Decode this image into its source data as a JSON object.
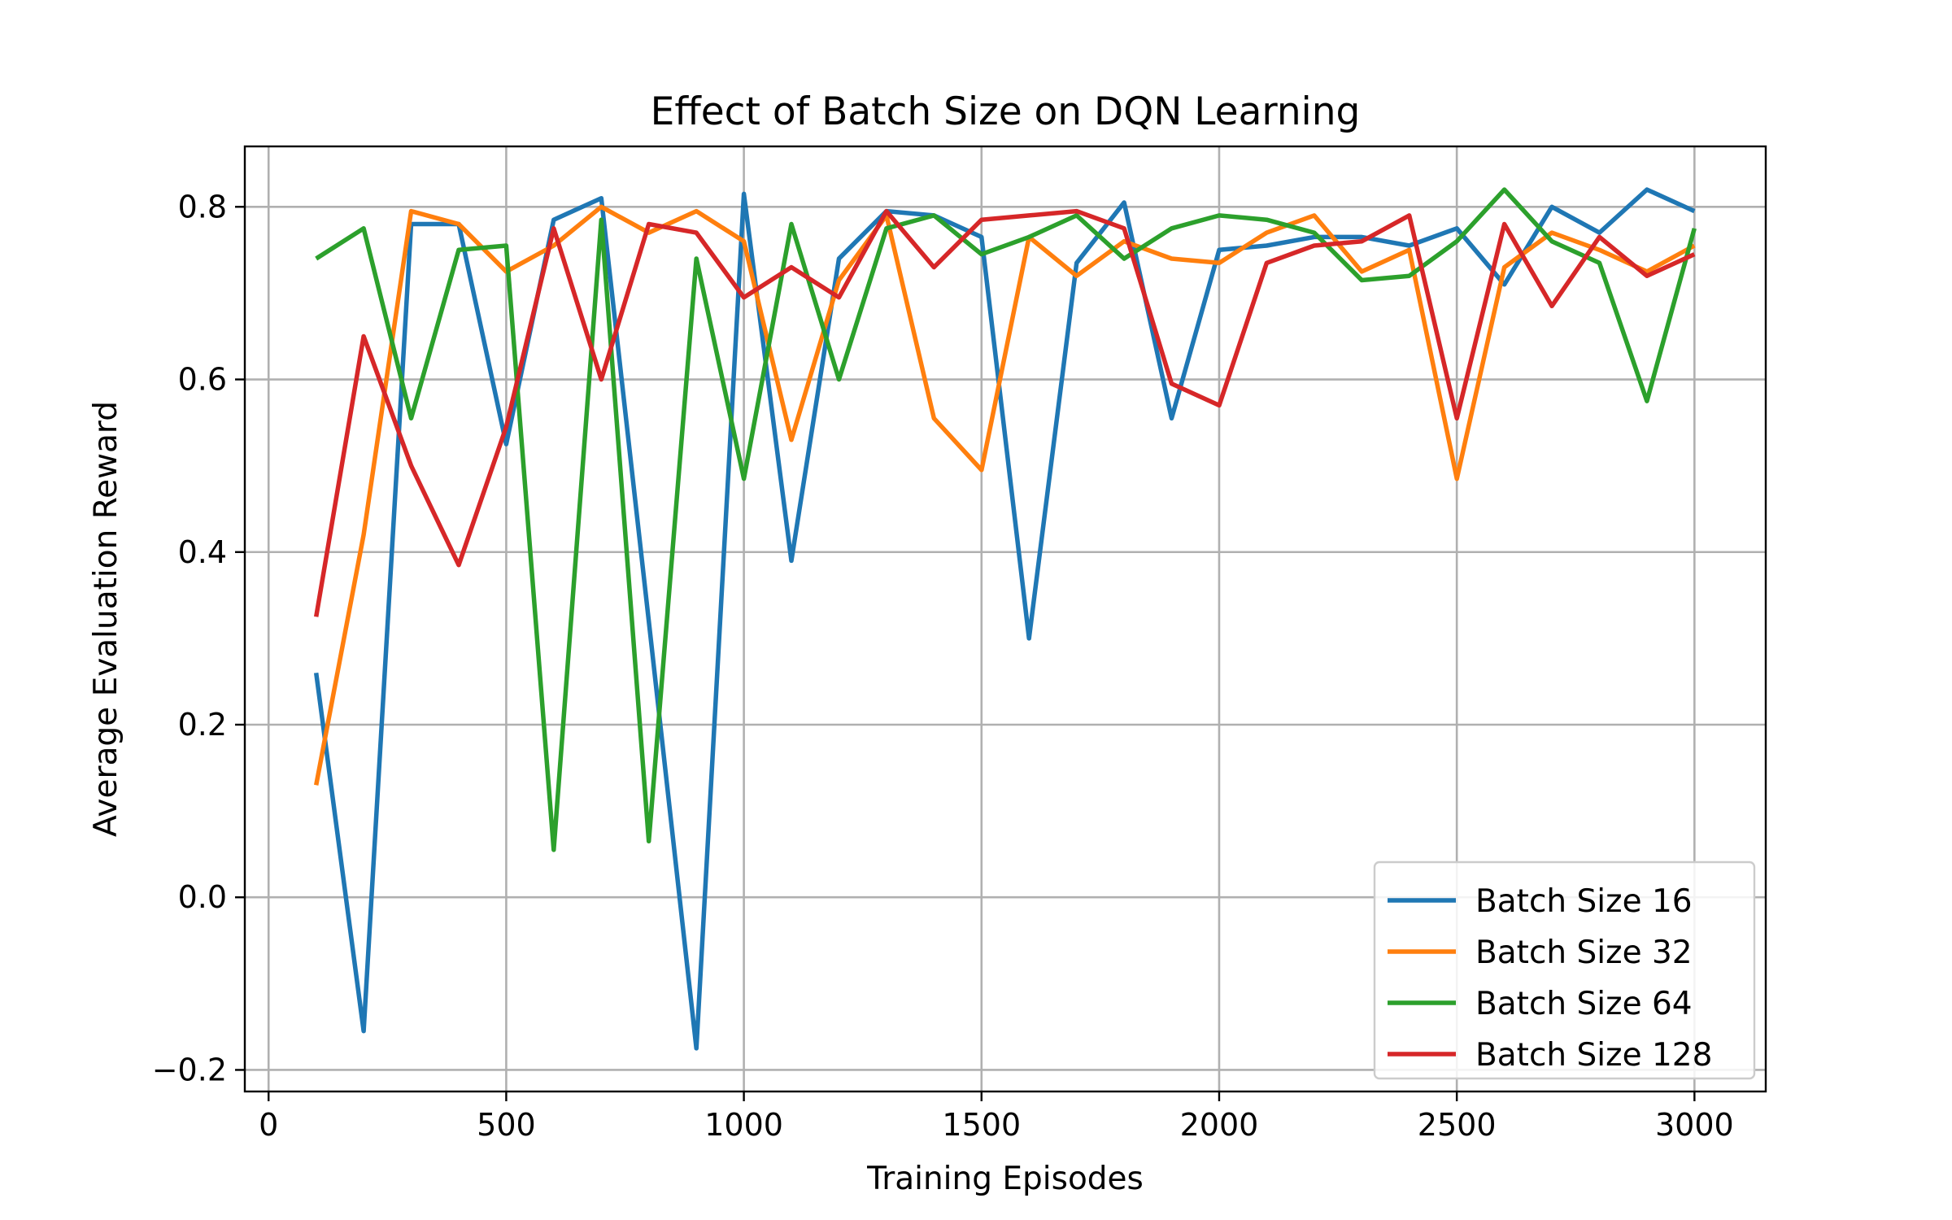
{
  "chart_data": {
    "type": "line",
    "title": "Effect of Batch Size on DQN Learning",
    "xlabel": "Training Episodes",
    "ylabel": "Average Evaluation Reward",
    "xlim": [
      -50,
      3150
    ],
    "ylim": [
      -0.225,
      0.87
    ],
    "xticks": [
      0,
      500,
      1000,
      1500,
      2000,
      2500,
      3000
    ],
    "xtick_labels": [
      "0",
      "500",
      "1000",
      "1500",
      "2000",
      "2500",
      "3000"
    ],
    "yticks": [
      -0.2,
      0.0,
      0.2,
      0.4,
      0.6,
      0.8
    ],
    "ytick_labels": [
      "−0.2",
      "0.0",
      "0.2",
      "0.4",
      "0.6",
      "0.8"
    ],
    "grid": true,
    "legend_position": "bottom-right",
    "x": [
      100,
      200,
      300,
      400,
      500,
      600,
      700,
      800,
      900,
      1000,
      1100,
      1200,
      1300,
      1400,
      1500,
      1600,
      1700,
      1800,
      1900,
      2000,
      2100,
      2200,
      2300,
      2400,
      2500,
      2600,
      2700,
      2800,
      2900,
      3000
    ],
    "series": [
      {
        "name": "Batch Size 16",
        "color": "#1f77b4",
        "values": [
          0.26,
          -0.155,
          0.78,
          0.78,
          0.525,
          0.785,
          0.81,
          0.32,
          -0.175,
          0.815,
          0.39,
          0.74,
          0.795,
          0.79,
          0.765,
          0.3,
          0.735,
          0.805,
          0.555,
          0.75,
          0.755,
          0.765,
          0.765,
          0.755,
          0.775,
          0.71,
          0.8,
          0.77,
          0.82,
          0.795
        ]
      },
      {
        "name": "Batch Size 32",
        "color": "#ff7f0e",
        "values": [
          0.13,
          0.42,
          0.795,
          0.78,
          0.725,
          0.755,
          0.8,
          0.77,
          0.795,
          0.76,
          0.53,
          0.715,
          0.79,
          0.555,
          0.495,
          0.765,
          0.72,
          0.76,
          0.74,
          0.735,
          0.77,
          0.79,
          0.725,
          0.75,
          0.485,
          0.73,
          0.77,
          0.75,
          0.725,
          0.755
        ]
      },
      {
        "name": "Batch Size 64",
        "color": "#2ca02c",
        "values": [
          0.74,
          0.775,
          0.555,
          0.75,
          0.755,
          0.055,
          0.785,
          0.065,
          0.74,
          0.485,
          0.78,
          0.6,
          0.775,
          0.79,
          0.745,
          0.765,
          0.79,
          0.74,
          0.775,
          0.79,
          0.785,
          0.77,
          0.715,
          0.72,
          0.76,
          0.82,
          0.76,
          0.735,
          0.575,
          0.775
        ]
      },
      {
        "name": "Batch Size 128",
        "color": "#d62728",
        "values": [
          0.325,
          0.65,
          0.5,
          0.385,
          0.545,
          0.775,
          0.6,
          0.78,
          0.77,
          0.695,
          0.73,
          0.695,
          0.795,
          0.73,
          0.785,
          0.79,
          0.795,
          0.775,
          0.595,
          0.57,
          0.735,
          0.755,
          0.76,
          0.79,
          0.555,
          0.78,
          0.685,
          0.765,
          0.72,
          0.745
        ]
      }
    ]
  }
}
